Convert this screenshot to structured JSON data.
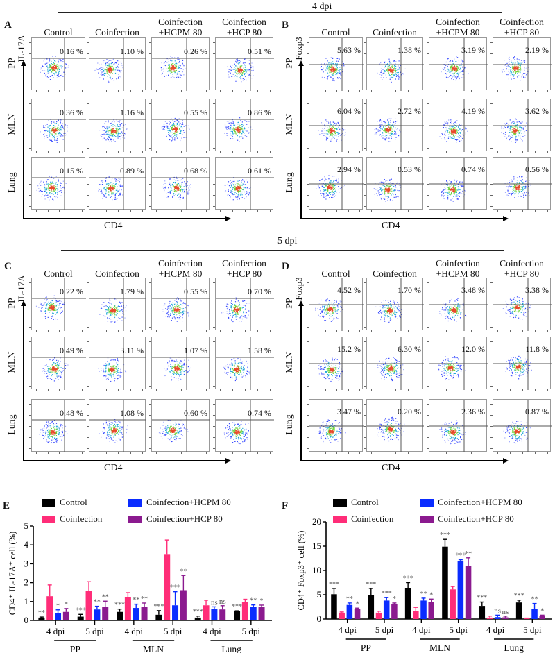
{
  "figure": {
    "top_dpi": "4 dpi",
    "mid_dpi": "5 dpi",
    "columns": [
      "Control",
      "Coinfection",
      "Coinfection\n+HCPM 80",
      "Coinfection\n+HCP 80"
    ],
    "columns_line1": [
      "Control",
      "Coinfection",
      "Coinfection",
      "Coinfection"
    ],
    "columns_line2": [
      "",
      "",
      "+HCPM 80",
      "+HCP 80"
    ],
    "rows": [
      "PP",
      "MLN",
      "Lung"
    ],
    "x_marker": "CD4",
    "colors": {
      "control": "#000000",
      "coinfection": "#ff2d78",
      "hcpm": "#0a2cff",
      "hcp": "#8b1a8f"
    }
  },
  "panels": {
    "A": {
      "letter": "A",
      "marker": "IL-17A",
      "values": [
        [
          "0.16 %",
          "1.10 %",
          "0.26 %",
          "0.51 %"
        ],
        [
          "0.36 %",
          "1.16 %",
          "0.55 %",
          "0.86 %"
        ],
        [
          "0.15 %",
          "0.89 %",
          "0.68 %",
          "0.61 %"
        ]
      ]
    },
    "B": {
      "letter": "B",
      "marker": "Foxp3",
      "values": [
        [
          "5.63 %",
          "1.38 %",
          "3.19 %",
          "2.19 %"
        ],
        [
          "6.04 %",
          "2.72 %",
          "4.19 %",
          "3.62 %"
        ],
        [
          "2.94 %",
          "0.53 %",
          "0.74 %",
          "0.56 %"
        ]
      ]
    },
    "C": {
      "letter": "C",
      "marker": "IL-17A",
      "values": [
        [
          "0.22 %",
          "1.79 %",
          "0.55 %",
          "0.70 %"
        ],
        [
          "0.49 %",
          "3.11 %",
          "1.07 %",
          "1.58 %"
        ],
        [
          "0.48 %",
          "1.08 %",
          "0.60 %",
          "0.74 %"
        ]
      ]
    },
    "D": {
      "letter": "D",
      "marker": "Foxp3",
      "values": [
        [
          "4.52 %",
          "1.70 %",
          "3.48 %",
          "3.38 %"
        ],
        [
          "15.2 %",
          "6.30 %",
          "12.0 %",
          "11.8 %"
        ],
        [
          "3.47 %",
          "0.20 %",
          "2.36 %",
          "0.87 %"
        ]
      ]
    }
  },
  "chart_data": [
    {
      "panel": "E",
      "type": "bar",
      "title": "",
      "ylabel": "CD4⁺ IL-17A⁺ cell (%)",
      "xlabel": "",
      "ylim": [
        0,
        5
      ],
      "yticks": [
        0,
        1,
        2,
        3,
        4,
        5
      ],
      "groups": [
        "PP",
        "MLN",
        "Lung"
      ],
      "categories": [
        "4 dpi",
        "5 dpi",
        "4 dpi",
        "5 dpi",
        "4 dpi",
        "5 dpi"
      ],
      "legend": [
        "Control",
        "Coinfection",
        "Coinfection+HCPM 80",
        "Coinfection+HCP 80"
      ],
      "legend_position": "top",
      "series": [
        {
          "name": "Control",
          "values": [
            0.15,
            0.2,
            0.45,
            0.3,
            0.15,
            0.48
          ],
          "errors": [
            0.03,
            0.12,
            0.15,
            0.22,
            0.08,
            0.03
          ],
          "sig": [
            "**",
            "***",
            "***",
            "***",
            "***",
            "***"
          ]
        },
        {
          "name": "Coinfection",
          "values": [
            1.28,
            1.55,
            1.25,
            3.48,
            0.8,
            0.97
          ],
          "errors": [
            0.6,
            0.5,
            0.22,
            0.78,
            0.27,
            0.15
          ],
          "sig": [
            "",
            "",
            "",
            "",
            "",
            ""
          ]
        },
        {
          "name": "Coinfection+HCPM 80",
          "values": [
            0.38,
            0.58,
            0.66,
            0.8,
            0.6,
            0.7
          ],
          "errors": [
            0.18,
            0.17,
            0.2,
            0.72,
            0.12,
            0.12
          ],
          "sig": [
            "*",
            "**",
            "**",
            "***",
            "ns",
            "**"
          ]
        },
        {
          "name": "Coinfection+HCP 80",
          "values": [
            0.45,
            0.72,
            0.72,
            1.6,
            0.58,
            0.73
          ],
          "errors": [
            0.18,
            0.3,
            0.2,
            0.78,
            0.2,
            0.08
          ],
          "sig": [
            "*",
            "**",
            "**",
            "**",
            "ns",
            "*"
          ]
        }
      ]
    },
    {
      "panel": "F",
      "type": "bar",
      "title": "",
      "ylabel": "CD4⁺ Foxp3⁺ cell (%)",
      "xlabel": "",
      "ylim": [
        0,
        20
      ],
      "yticks": [
        0,
        5,
        10,
        15,
        20
      ],
      "groups": [
        "PP",
        "MLN",
        "Lung"
      ],
      "categories": [
        "4 dpi",
        "5 dpi",
        "4 dpi",
        "5 dpi",
        "4 dpi",
        "5 dpi"
      ],
      "legend": [
        "Control",
        "Coinfection",
        "Coinfection+HCPM 80",
        "Coinfection+HCP 80"
      ],
      "legend_position": "top",
      "series": [
        {
          "name": "Control",
          "values": [
            5.1,
            5.0,
            6.3,
            14.9,
            2.7,
            3.4
          ],
          "errors": [
            1.2,
            1.3,
            1.2,
            1.5,
            0.8,
            0.5
          ],
          "sig": [
            "***",
            "***",
            "***",
            "***",
            "***",
            "***"
          ]
        },
        {
          "name": "Coinfection",
          "values": [
            1.3,
            1.3,
            1.7,
            6.1,
            0.3,
            0.15
          ],
          "errors": [
            0.15,
            0.3,
            0.7,
            0.6,
            0.3,
            0.05
          ],
          "sig": [
            "",
            "",
            "",
            "",
            "",
            ""
          ]
        },
        {
          "name": "Coinfection+HCPM 80",
          "values": [
            2.9,
            3.8,
            3.8,
            11.9,
            0.4,
            2.1
          ],
          "errors": [
            0.4,
            0.6,
            0.5,
            0.3,
            0.4,
            1.1
          ],
          "sig": [
            "**",
            "***",
            "**",
            "***",
            "ns",
            "**"
          ]
        },
        {
          "name": "Coinfection+HCP 80",
          "values": [
            2.1,
            3.0,
            3.5,
            10.9,
            0.35,
            0.7
          ],
          "errors": [
            0.15,
            0.3,
            0.6,
            1.7,
            0.25,
            0.1
          ],
          "sig": [
            "*",
            "*",
            "*",
            "**",
            "ns",
            "*"
          ]
        }
      ]
    }
  ]
}
